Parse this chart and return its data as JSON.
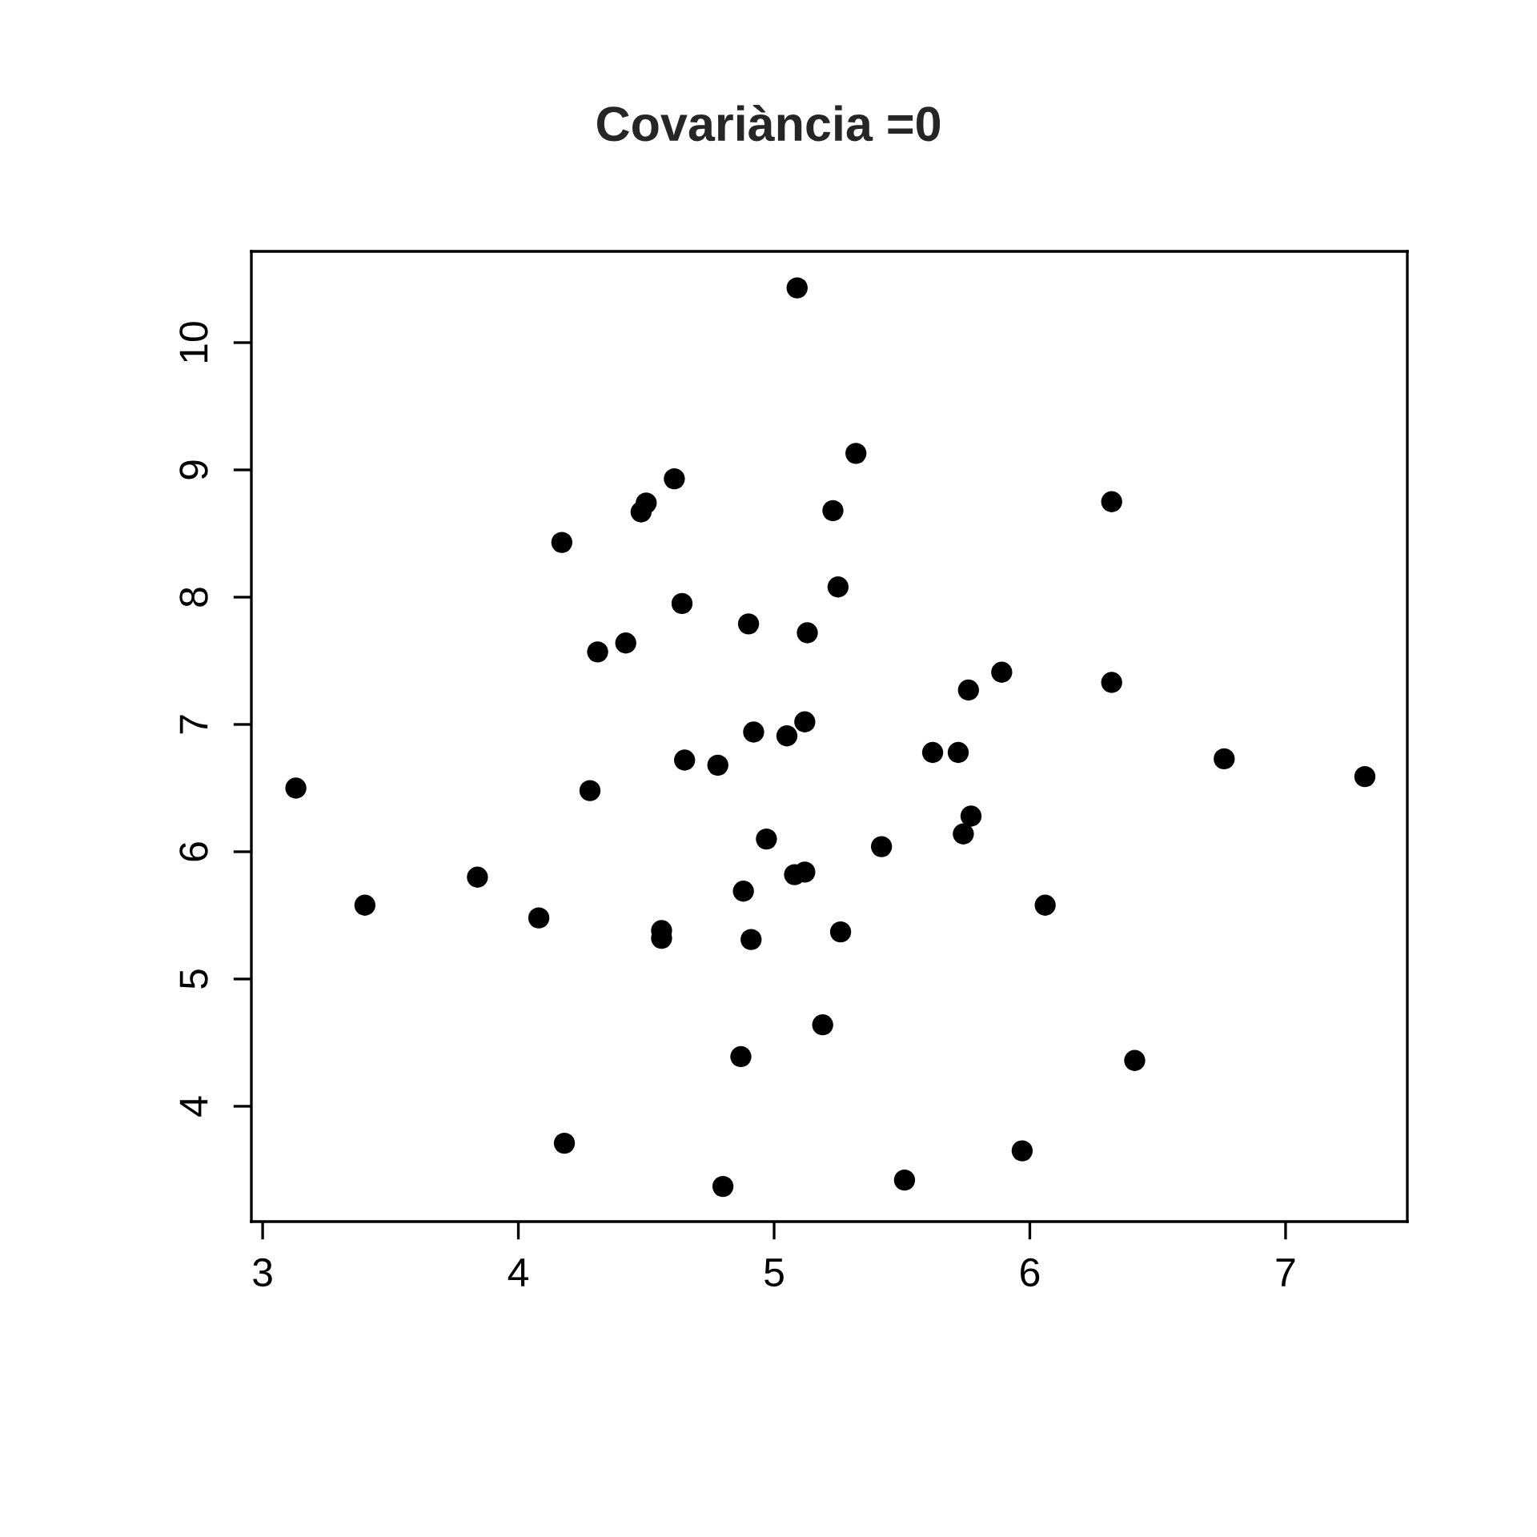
{
  "chart_data": {
    "type": "scatter",
    "title": "Covariància =0",
    "x": [
      3.13,
      3.4,
      3.84,
      4.08,
      4.17,
      4.18,
      4.28,
      4.31,
      4.42,
      4.48,
      4.5,
      4.56,
      4.56,
      4.61,
      4.64,
      4.65,
      4.78,
      4.8,
      4.87,
      4.88,
      4.9,
      4.91,
      4.92,
      4.97,
      5.05,
      5.08,
      5.09,
      5.12,
      5.12,
      5.13,
      5.19,
      5.23,
      5.25,
      5.26,
      5.32,
      5.42,
      5.51,
      5.62,
      5.72,
      5.74,
      5.76,
      5.77,
      5.89,
      5.97,
      6.06,
      6.32,
      6.32,
      6.41,
      6.76,
      7.31
    ],
    "series": [
      {
        "color": "#000000",
        "values": [
          6.5,
          5.58,
          5.8,
          5.48,
          8.43,
          3.71,
          6.48,
          7.57,
          7.64,
          8.67,
          8.74,
          5.38,
          5.32,
          8.93,
          7.95,
          6.72,
          6.68,
          3.37,
          4.39,
          5.69,
          7.79,
          5.31,
          6.94,
          6.1,
          6.91,
          5.82,
          10.43,
          5.84,
          7.02,
          7.72,
          4.64,
          8.68,
          8.08,
          5.37,
          9.13,
          6.04,
          3.42,
          6.78,
          6.78,
          6.14,
          7.27,
          6.28,
          7.41,
          3.65,
          5.58,
          7.33,
          8.75,
          4.36,
          6.73,
          6.59
        ]
      }
    ],
    "xlim": [
      2.956,
      7.476
    ],
    "ylim": [
      3.094,
      10.717
    ],
    "xticks": [
      3,
      4,
      5,
      6,
      7
    ],
    "yticks": [
      4,
      5,
      6,
      7,
      8,
      9,
      10
    ],
    "marker": "circle",
    "grid": false,
    "legend": false
  }
}
